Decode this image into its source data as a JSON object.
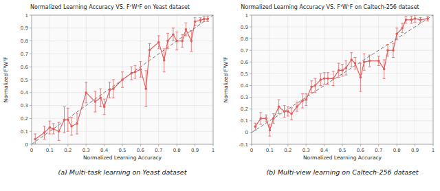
{
  "chart_data": [
    {
      "type": "line",
      "title": "Normalized Learning Accuracy VS. FᵀWᵀF on Yeast dataset",
      "x_label": "Normalized Learning Accuracy",
      "y_label": "Normalized FᵀWᵀF",
      "caption": "(a)  Multi-task learning on Yeast dataset",
      "xlim": [
        0,
        1
      ],
      "ylim": [
        0,
        1
      ],
      "xticks": [
        0,
        0.1,
        0.2,
        0.3,
        0.4,
        0.5,
        0.6,
        0.7,
        0.8,
        0.9,
        1
      ],
      "yticks": [
        0,
        0.1,
        0.2,
        0.3,
        0.4,
        0.5,
        0.6,
        0.7,
        0.8,
        0.9,
        1
      ],
      "grid": true,
      "series": [
        {
          "type": "line",
          "line_style": "dashed",
          "color": "#666666",
          "x": [
            0,
            1
          ],
          "values": [
            0,
            1
          ]
        },
        {
          "type": "line",
          "line_style": "solid",
          "marker": "circle",
          "color": "#e06060",
          "x": [
            0.02,
            0.07,
            0.1,
            0.12,
            0.15,
            0.18,
            0.2,
            0.22,
            0.25,
            0.3,
            0.35,
            0.38,
            0.4,
            0.43,
            0.45,
            0.5,
            0.55,
            0.57,
            0.6,
            0.63,
            0.65,
            0.7,
            0.73,
            0.75,
            0.78,
            0.8,
            0.83,
            0.85,
            0.88,
            0.9,
            0.93,
            0.95,
            0.97
          ],
          "values": [
            0.04,
            0.09,
            0.13,
            0.12,
            0.1,
            0.19,
            0.19,
            0.14,
            0.16,
            0.4,
            0.33,
            0.36,
            0.29,
            0.42,
            0.43,
            0.5,
            0.55,
            0.56,
            0.58,
            0.43,
            0.73,
            0.79,
            0.65,
            0.8,
            0.85,
            0.8,
            0.8,
            0.89,
            0.8,
            0.95,
            0.96,
            0.97,
            0.97
          ],
          "yerr": [
            0.04,
            0.05,
            0.05,
            0.04,
            0.07,
            0.1,
            0.09,
            0.07,
            0.08,
            0.08,
            0.08,
            0.07,
            0.06,
            0.06,
            0.07,
            0.06,
            0.05,
            0.05,
            0.06,
            0.14,
            0.05,
            0.05,
            0.09,
            0.06,
            0.05,
            0.07,
            0.05,
            0.05,
            0.08,
            0.03,
            0.02,
            0.02,
            0.02
          ]
        }
      ]
    },
    {
      "type": "line",
      "title": "Normalized Learning Accuracy VS. FᵀWᵀF on Caltech-256 dataset",
      "x_label": "Normalized Learning Accuracy",
      "y_label": "Normalized FᵀWᵀF",
      "caption": "(b)  Multi-view learning on Caltech-256 dataset",
      "xlim": [
        0,
        1
      ],
      "ylim": [
        -0.1,
        1
      ],
      "xticks": [
        0,
        0.1,
        0.2,
        0.3,
        0.4,
        0.5,
        0.6,
        0.7,
        0.8,
        0.9,
        1
      ],
      "yticks": [
        -0.1,
        0,
        0.1,
        0.2,
        0.3,
        0.4,
        0.5,
        0.6,
        0.7,
        0.8,
        0.9,
        1
      ],
      "grid": true,
      "series": [
        {
          "type": "line",
          "line_style": "dashed",
          "color": "#666666",
          "x": [
            0,
            1
          ],
          "values": [
            0,
            1
          ]
        },
        {
          "type": "line",
          "line_style": "solid",
          "marker": "circle",
          "color": "#e06060",
          "x": [
            0.02,
            0.05,
            0.08,
            0.1,
            0.12,
            0.15,
            0.18,
            0.2,
            0.22,
            0.25,
            0.28,
            0.3,
            0.33,
            0.35,
            0.38,
            0.4,
            0.42,
            0.45,
            0.48,
            0.5,
            0.52,
            0.55,
            0.57,
            0.6,
            0.62,
            0.65,
            0.7,
            0.73,
            0.75,
            0.78,
            0.8,
            0.83,
            0.85,
            0.88,
            0.9,
            0.93,
            0.97
          ],
          "values": [
            0.05,
            0.12,
            0.12,
            0.02,
            0.12,
            0.22,
            0.18,
            0.18,
            0.16,
            0.22,
            0.27,
            0.28,
            0.39,
            0.4,
            0.45,
            0.46,
            0.46,
            0.46,
            0.53,
            0.53,
            0.55,
            0.62,
            0.59,
            0.47,
            0.6,
            0.61,
            0.61,
            0.54,
            0.7,
            0.7,
            0.84,
            0.89,
            0.96,
            0.96,
            0.97,
            0.96,
            0.97
          ],
          "yerr": [
            0.03,
            0.05,
            0.03,
            0.05,
            0.04,
            0.06,
            0.05,
            0.04,
            0.05,
            0.04,
            0.06,
            0.05,
            0.05,
            0.06,
            0.05,
            0.05,
            0.05,
            0.06,
            0.06,
            0.05,
            0.06,
            0.06,
            0.05,
            0.12,
            0.07,
            0.05,
            0.04,
            0.08,
            0.05,
            0.06,
            0.05,
            0.04,
            0.03,
            0.03,
            0.03,
            0.02,
            0.02
          ]
        }
      ]
    }
  ]
}
